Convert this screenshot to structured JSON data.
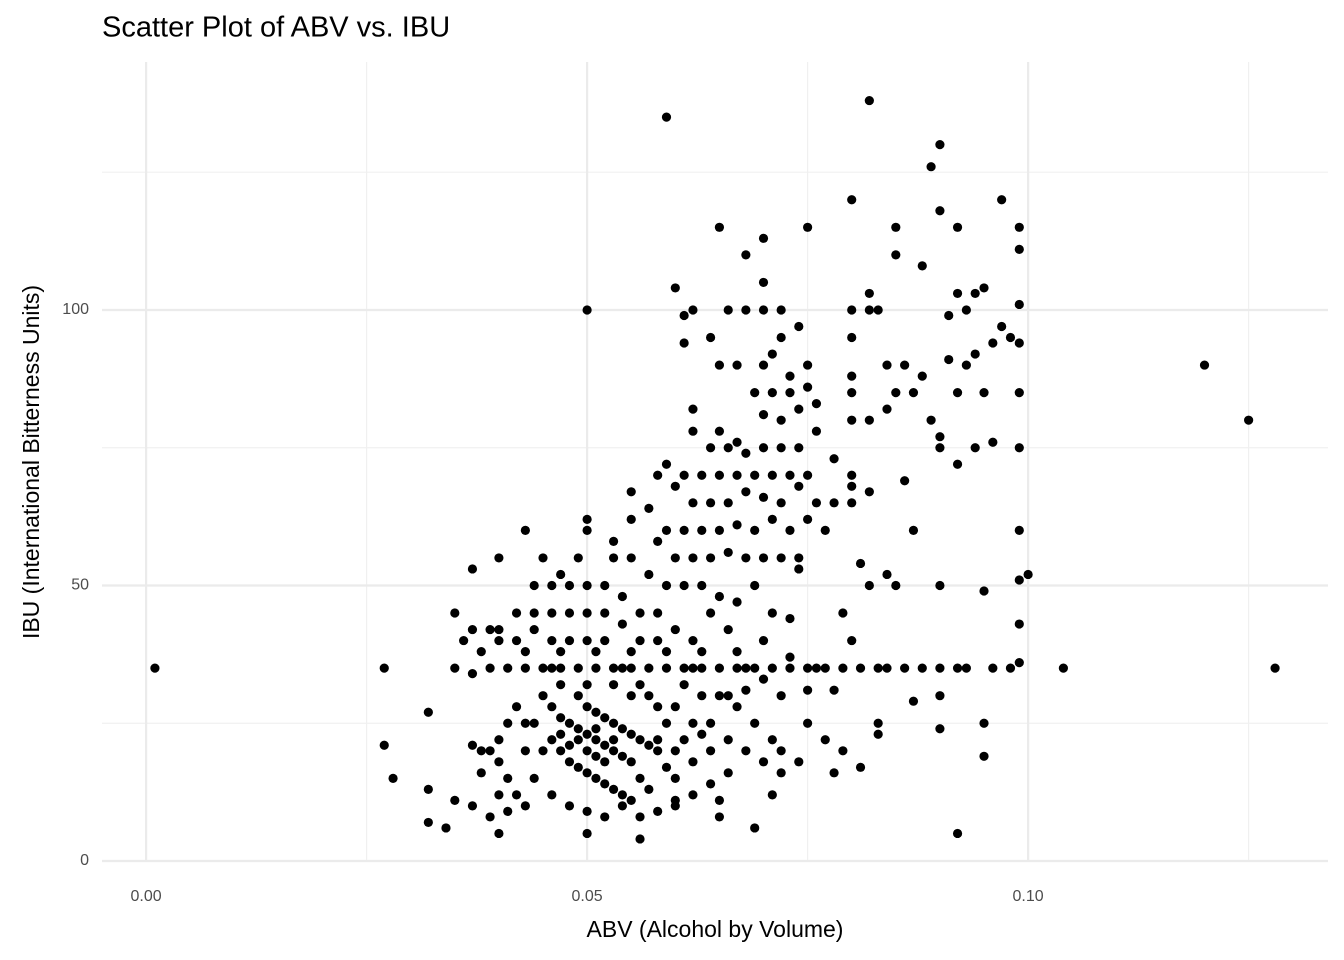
{
  "chart_data": {
    "type": "scatter",
    "title": "Scatter Plot of ABV vs. IBU",
    "x_label": "ABV (Alcohol by Volume)",
    "y_label": "IBU (International Bitterness Units)",
    "color": "#000000",
    "grid": true,
    "xlim": [
      -0.005,
      0.134
    ],
    "ylim": [
      0,
      145
    ],
    "xticks": [
      {
        "value": 0,
        "label": "0.00"
      },
      0.05,
      {
        "value": 0.1,
        "label": "0.10"
      }
    ],
    "yticks": [
      0,
      50,
      100
    ],
    "x_minor_ticks": [
      0.025,
      0.075,
      0.125
    ],
    "y_minor_ticks": [
      25,
      75,
      125
    ],
    "x": [
      0.001,
      0.027,
      0.027,
      0.028,
      0.032,
      0.032,
      0.032,
      0.034,
      0.035,
      0.035,
      0.035,
      0.037,
      0.037,
      0.037,
      0.037,
      0.04,
      0.04,
      0.043,
      0.05,
      0.05,
      0.059,
      0.06,
      0.061,
      0.065,
      0.068,
      0.07,
      0.07,
      0.075,
      0.08,
      0.082,
      0.09,
      0.089,
      0.097,
      0.099,
      0.099,
      0.085,
      0.09,
      0.092,
      0.088,
      0.085,
      0.12,
      0.125,
      0.128,
      0.104,
      0.1,
      0.099,
      0.092,
      0.099,
      0.099,
      0.099,
      0.099,
      0.099,
      0.099,
      0.095,
      0.095,
      0.095,
      0.09,
      0.09,
      0.09,
      0.087,
      0.087,
      0.083,
      0.083,
      0.081,
      0.078,
      0.071,
      0.065,
      0.06,
      0.065,
      0.069,
      0.056,
      0.04,
      0.05,
      0.039,
      0.041,
      0.043,
      0.045,
      0.047,
      0.049,
      0.051,
      0.053,
      0.055,
      0.057,
      0.059,
      0.061,
      0.063,
      0.065,
      0.067,
      0.069,
      0.071,
      0.073,
      0.075,
      0.077,
      0.079,
      0.081,
      0.083,
      0.086,
      0.088,
      0.09,
      0.093,
      0.096,
      0.098,
      0.099,
      0.092,
      0.084,
      0.076,
      0.068,
      0.062,
      0.054,
      0.046,
      0.062,
      0.061,
      0.066,
      0.068,
      0.07,
      0.072,
      0.074,
      0.064,
      0.065,
      0.067,
      0.07,
      0.071,
      0.072,
      0.073,
      0.075,
      0.069,
      0.071,
      0.073,
      0.075,
      0.076,
      0.07,
      0.072,
      0.074,
      0.062,
      0.062,
      0.065,
      0.067,
      0.064,
      0.066,
      0.068,
      0.07,
      0.072,
      0.074,
      0.076,
      0.078,
      0.075,
      0.073,
      0.071,
      0.069,
      0.067,
      0.065,
      0.063,
      0.061,
      0.059,
      0.058,
      0.06,
      0.062,
      0.064,
      0.066,
      0.068,
      0.07,
      0.072,
      0.074,
      0.076,
      0.078,
      0.08,
      0.08,
      0.08,
      0.082,
      0.082,
      0.08,
      0.08,
      0.08,
      0.08,
      0.08,
      0.082,
      0.083,
      0.082,
      0.084,
      0.086,
      0.085,
      0.087,
      0.088,
      0.089,
      0.09,
      0.091,
      0.092,
      0.093,
      0.094,
      0.095,
      0.091,
      0.092,
      0.093,
      0.094,
      0.095,
      0.096,
      0.097,
      0.098,
      0.09,
      0.092,
      0.094,
      0.096,
      0.084,
      0.079,
      0.08,
      0.081,
      0.082,
      0.084,
      0.085,
      0.086,
      0.055,
      0.057,
      0.059,
      0.061,
      0.063,
      0.065,
      0.067,
      0.069,
      0.071,
      0.073,
      0.075,
      0.077,
      0.058,
      0.06,
      0.062,
      0.064,
      0.066,
      0.068,
      0.07,
      0.072,
      0.074,
      0.074,
      0.053,
      0.055,
      0.057,
      0.059,
      0.061,
      0.063,
      0.065,
      0.067,
      0.069,
      0.071,
      0.073,
      0.07,
      0.066,
      0.062,
      0.06,
      0.058,
      0.056,
      0.054,
      0.052,
      0.05,
      0.048,
      0.046,
      0.044,
      0.042,
      0.044,
      0.046,
      0.048,
      0.05,
      0.052,
      0.054,
      0.056,
      0.058,
      0.052,
      0.05,
      0.048,
      0.046,
      0.044,
      0.042,
      0.04,
      0.038,
      0.036,
      0.037,
      0.039,
      0.043,
      0.047,
      0.051,
      0.055,
      0.059,
      0.063,
      0.067,
      0.073,
      0.064,
      0.045,
      0.047,
      0.05,
      0.053,
      0.049,
      0.055,
      0.045,
      0.046,
      0.047,
      0.048,
      0.049,
      0.05,
      0.051,
      0.052,
      0.053,
      0.054,
      0.049,
      0.05,
      0.051,
      0.052,
      0.053,
      0.054,
      0.055,
      0.056,
      0.057,
      0.058,
      0.046,
      0.047,
      0.048,
      0.049,
      0.05,
      0.051,
      0.052,
      0.053,
      0.054,
      0.055,
      0.044,
      0.045,
      0.044,
      0.046,
      0.048,
      0.05,
      0.052,
      0.054,
      0.056,
      0.058,
      0.06,
      0.062,
      0.06,
      0.062,
      0.064,
      0.06,
      0.059,
      0.058,
      0.057,
      0.056,
      0.06,
      0.062,
      0.064,
      0.066,
      0.063,
      0.061,
      0.065,
      0.067,
      0.069,
      0.071,
      0.068,
      0.07,
      0.072,
      0.075,
      0.077,
      0.079,
      0.074,
      0.072,
      0.066,
      0.064,
      0.042,
      0.041,
      0.04,
      0.039,
      0.04,
      0.041,
      0.042,
      0.043,
      0.041,
      0.039,
      0.038,
      0.038,
      0.04,
      0.043,
      0.043,
      0.047,
      0.05,
      0.053,
      0.055,
      0.051,
      0.048,
      0.05,
      0.052,
      0.053,
      0.049,
      0.051,
      0.047,
      0.055,
      0.056,
      0.057,
      0.059,
      0.058,
      0.061,
      0.063,
      0.066,
      0.068,
      0.07,
      0.072,
      0.075,
      0.078
    ],
    "y": [
      35,
      35,
      21,
      15,
      27,
      13,
      7,
      6,
      45,
      35,
      11,
      53,
      34,
      21,
      10,
      55,
      42,
      60,
      100,
      62,
      135,
      104,
      94,
      115,
      110,
      113,
      105,
      115,
      120,
      138,
      130,
      126,
      120,
      115,
      111,
      115,
      118,
      115,
      108,
      110,
      90,
      80,
      35,
      35,
      52,
      51,
      5,
      101,
      94,
      85,
      75,
      60,
      43,
      49,
      25,
      19,
      50,
      30,
      24,
      60,
      29,
      25,
      23,
      17,
      16,
      12,
      11,
      11,
      8,
      6,
      4,
      5,
      5,
      35,
      35,
      35,
      35,
      35,
      35,
      35,
      35,
      35,
      35,
      35,
      35,
      35,
      35,
      35,
      35,
      35,
      35,
      35,
      35,
      35,
      35,
      35,
      35,
      35,
      35,
      35,
      35,
      35,
      36,
      35,
      35,
      35,
      35,
      35,
      35,
      35,
      100,
      99,
      100,
      100,
      100,
      100,
      97,
      95,
      90,
      90,
      90,
      92,
      95,
      88,
      90,
      85,
      85,
      85,
      86,
      83,
      81,
      80,
      82,
      82,
      78,
      78,
      76,
      75,
      75,
      74,
      75,
      75,
      75,
      78,
      73,
      70,
      70,
      70,
      70,
      70,
      70,
      70,
      70,
      72,
      70,
      68,
      65,
      65,
      65,
      67,
      66,
      65,
      68,
      65,
      65,
      68,
      65,
      70,
      67,
      80,
      80,
      88,
      85,
      95,
      100,
      100,
      100,
      103,
      90,
      90,
      85,
      85,
      88,
      80,
      77,
      91,
      85,
      90,
      92,
      85,
      99,
      103,
      100,
      103,
      104,
      94,
      97,
      95,
      75,
      72,
      75,
      76,
      82,
      45,
      40,
      54,
      50,
      52,
      50,
      69,
      67,
      64,
      60,
      60,
      60,
      60,
      61,
      60,
      62,
      60,
      62,
      60,
      58,
      55,
      55,
      55,
      56,
      55,
      55,
      55,
      53,
      55,
      55,
      55,
      52,
      50,
      50,
      50,
      48,
      47,
      50,
      45,
      44,
      40,
      42,
      40,
      42,
      45,
      45,
      48,
      50,
      50,
      50,
      50,
      50,
      45,
      45,
      45,
      45,
      45,
      45,
      43,
      40,
      40,
      40,
      40,
      40,
      40,
      42,
      40,
      40,
      38,
      40,
      42,
      42,
      38,
      38,
      38,
      38,
      38,
      38,
      38,
      37,
      45,
      55,
      52,
      60,
      58,
      55,
      62,
      30,
      28,
      26,
      25,
      24,
      23,
      22,
      21,
      20,
      19,
      30,
      28,
      27,
      26,
      25,
      24,
      23,
      22,
      21,
      20,
      22,
      20,
      18,
      17,
      16,
      15,
      14,
      13,
      12,
      11,
      25,
      20,
      15,
      12,
      10,
      9,
      8,
      10,
      8,
      9,
      10,
      12,
      15,
      18,
      20,
      20,
      25,
      28,
      30,
      32,
      28,
      25,
      25,
      22,
      30,
      32,
      30,
      28,
      25,
      22,
      20,
      18,
      20,
      25,
      22,
      20,
      18,
      16,
      16,
      14,
      28,
      25,
      22,
      20,
      18,
      15,
      12,
      10,
      9,
      8,
      16,
      20,
      12,
      20,
      25,
      32,
      32,
      32,
      30,
      19,
      21,
      20,
      18,
      22,
      22,
      24,
      23,
      18,
      15,
      13,
      17,
      22,
      22,
      23,
      30,
      31,
      33,
      30,
      31,
      31
    ]
  }
}
